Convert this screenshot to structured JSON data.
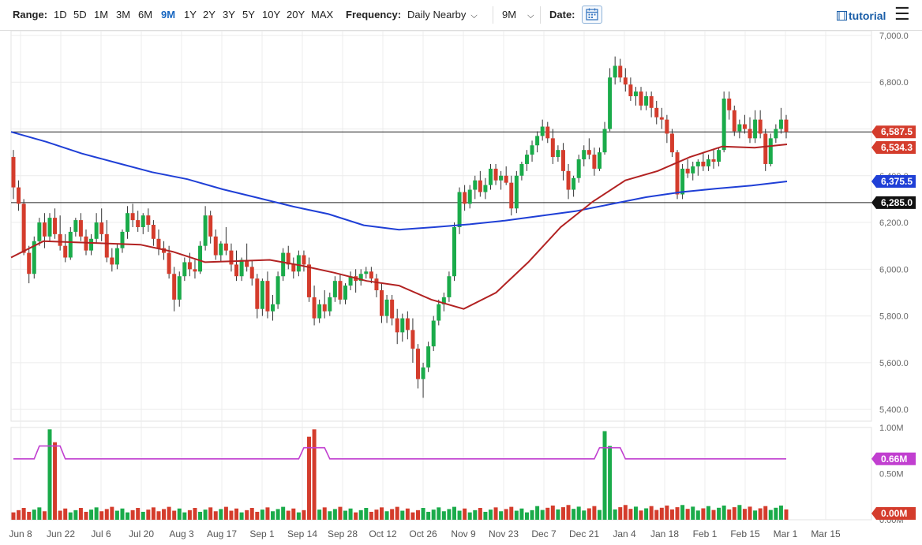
{
  "toolbar": {
    "range_label": "Range:",
    "ranges": [
      "1D",
      "5D",
      "1M",
      "3M",
      "6M",
      "9M",
      "1Y",
      "2Y",
      "3Y",
      "5Y",
      "10Y",
      "20Y",
      "MAX"
    ],
    "active_range": "9M",
    "frequency_label": "Frequency:",
    "frequency_value": "Daily Nearby",
    "period_value": "9M",
    "date_label": "Date:",
    "tutorial_label": "tutorial"
  },
  "colors": {
    "up": "#1aab4a",
    "down": "#d43c2c",
    "ma_short": "#b22222",
    "ma_long": "#1f3fd6",
    "volume_ma": "#c13fd0",
    "accent": "#1565c0"
  },
  "chart_data": [
    {
      "type": "candlestick",
      "x_tick_labels": [
        "Jun 8",
        "Jun 22",
        "Jul 6",
        "Jul 20",
        "Aug 3",
        "Aug 17",
        "Sep 1",
        "Sep 14",
        "Sep 28",
        "Oct 12",
        "Oct 26",
        "Nov 9",
        "Nov 23",
        "Dec 7",
        "Dec 21",
        "Jan 4",
        "Jan 18",
        "Feb 1",
        "Feb 15",
        "Mar 1",
        "Mar 15"
      ],
      "y_tick_labels": [
        "5,400.0",
        "5,600.0",
        "5,800.0",
        "6,000.0",
        "6,200.0",
        "6,400.0",
        "6,600.0",
        "6,800.0",
        "7,000.0"
      ],
      "ylim": [
        5350,
        7020
      ],
      "price_labels": {
        "last": "6,587.5",
        "ma_short": "6,534.3",
        "ma_long": "6,375.5",
        "support": "6,285.0"
      },
      "horizontal_lines": [
        6587.5,
        6285.0
      ],
      "ma_short_anchors": [
        6050,
        6120,
        6115,
        6110,
        6105,
        6075,
        6030,
        6035,
        6040,
        6015,
        5985,
        5950,
        5930,
        5870,
        5830,
        5900,
        6030,
        6180,
        6290,
        6380,
        6420,
        6480,
        6525,
        6520,
        6534.3
      ],
      "ma_long_anchors": [
        6587.5,
        6545,
        6495,
        6455,
        6415,
        6385,
        6342,
        6305,
        6268,
        6236,
        6188,
        6169,
        6180,
        6192,
        6208,
        6228,
        6248,
        6278,
        6308,
        6330,
        6345,
        6358,
        6375.5
      ],
      "candles": [
        [
          6480,
          6510,
          6300,
          6350
        ],
        [
          6350,
          6380,
          6250,
          6280
        ],
        [
          6280,
          6300,
          6060,
          6070
        ],
        [
          6070,
          6100,
          5940,
          5980
        ],
        [
          5980,
          6140,
          5960,
          6120
        ],
        [
          6120,
          6220,
          6100,
          6200
        ],
        [
          6200,
          6240,
          6090,
          6140
        ],
        [
          6140,
          6240,
          6120,
          6220
        ],
        [
          6220,
          6260,
          6130,
          6150
        ],
        [
          6150,
          6230,
          6080,
          6100
        ],
        [
          6100,
          6150,
          6030,
          6050
        ],
        [
          6050,
          6180,
          6040,
          6160
        ],
        [
          6160,
          6220,
          6140,
          6210
        ],
        [
          6210,
          6240,
          6120,
          6140
        ],
        [
          6140,
          6170,
          6060,
          6080
        ],
        [
          6080,
          6150,
          6060,
          6130
        ],
        [
          6130,
          6240,
          6110,
          6200
        ],
        [
          6200,
          6260,
          6120,
          6150
        ],
        [
          6150,
          6210,
          6030,
          6050
        ],
        [
          6050,
          6090,
          5990,
          6020
        ],
        [
          6020,
          6110,
          6000,
          6090
        ],
        [
          6090,
          6170,
          6070,
          6160
        ],
        [
          6160,
          6270,
          6130,
          6240
        ],
        [
          6240,
          6280,
          6180,
          6210
        ],
        [
          6210,
          6250,
          6160,
          6180
        ],
        [
          6180,
          6240,
          6150,
          6230
        ],
        [
          6230,
          6260,
          6160,
          6190
        ],
        [
          6190,
          6210,
          6100,
          6130
        ],
        [
          6130,
          6170,
          6060,
          6090
        ],
        [
          6090,
          6120,
          6040,
          6070
        ],
        [
          6070,
          6100,
          5960,
          5980
        ],
        [
          5980,
          6010,
          5820,
          5870
        ],
        [
          5870,
          5990,
          5840,
          5970
        ],
        [
          5970,
          6050,
          5950,
          6030
        ],
        [
          6030,
          6070,
          5970,
          6000
        ],
        [
          6000,
          6040,
          5960,
          5990
        ],
        [
          5990,
          6120,
          5980,
          6100
        ],
        [
          6100,
          6270,
          6080,
          6230
        ],
        [
          6230,
          6250,
          6110,
          6140
        ],
        [
          6140,
          6170,
          6040,
          6060
        ],
        [
          6060,
          6120,
          6030,
          6110
        ],
        [
          6110,
          6180,
          6060,
          6080
        ],
        [
          6080,
          6110,
          5990,
          6020
        ],
        [
          6020,
          6080,
          5950,
          5970
        ],
        [
          5970,
          6050,
          5950,
          6040
        ],
        [
          6040,
          6110,
          5990,
          6010
        ],
        [
          6010,
          6040,
          5930,
          5960
        ],
        [
          5960,
          5980,
          5790,
          5830
        ],
        [
          5830,
          5960,
          5800,
          5950
        ],
        [
          5950,
          5990,
          5790,
          5820
        ],
        [
          5820,
          5890,
          5780,
          5850
        ],
        [
          5850,
          5990,
          5830,
          5970
        ],
        [
          5970,
          6090,
          5950,
          6070
        ],
        [
          6070,
          6100,
          6000,
          6020
        ],
        [
          6020,
          6050,
          5960,
          5990
        ],
        [
          5990,
          6080,
          5970,
          6060
        ],
        [
          6060,
          6080,
          5990,
          6020
        ],
        [
          6020,
          6050,
          5860,
          5880
        ],
        [
          5880,
          5930,
          5760,
          5790
        ],
        [
          5790,
          5870,
          5770,
          5850
        ],
        [
          5850,
          5910,
          5790,
          5820
        ],
        [
          5820,
          5900,
          5800,
          5880
        ],
        [
          5880,
          5970,
          5860,
          5950
        ],
        [
          5950,
          5980,
          5850,
          5870
        ],
        [
          5870,
          5940,
          5850,
          5930
        ],
        [
          5930,
          5990,
          5910,
          5970
        ],
        [
          5970,
          6000,
          5900,
          5950
        ],
        [
          5950,
          6000,
          5930,
          5980
        ],
        [
          5980,
          6010,
          5960,
          5990
        ],
        [
          5990,
          6010,
          5940,
          5960
        ],
        [
          5960,
          5980,
          5880,
          5910
        ],
        [
          5910,
          5940,
          5770,
          5800
        ],
        [
          5800,
          5890,
          5770,
          5870
        ],
        [
          5870,
          5890,
          5760,
          5790
        ],
        [
          5790,
          5830,
          5680,
          5730
        ],
        [
          5730,
          5810,
          5690,
          5790
        ],
        [
          5790,
          5820,
          5700,
          5740
        ],
        [
          5740,
          5790,
          5600,
          5660
        ],
        [
          5660,
          5680,
          5490,
          5530
        ],
        [
          5530,
          5600,
          5450,
          5580
        ],
        [
          5580,
          5690,
          5560,
          5670
        ],
        [
          5670,
          5800,
          5650,
          5780
        ],
        [
          5780,
          5870,
          5760,
          5850
        ],
        [
          5850,
          5900,
          5820,
          5880
        ],
        [
          5880,
          5990,
          5860,
          5970
        ],
        [
          5970,
          6200,
          5950,
          6180
        ],
        [
          6180,
          6350,
          6150,
          6330
        ],
        [
          6330,
          6360,
          6250,
          6280
        ],
        [
          6280,
          6360,
          6260,
          6340
        ],
        [
          6340,
          6400,
          6300,
          6380
        ],
        [
          6380,
          6420,
          6310,
          6330
        ],
        [
          6330,
          6390,
          6300,
          6360
        ],
        [
          6360,
          6450,
          6340,
          6430
        ],
        [
          6430,
          6450,
          6360,
          6380
        ],
        [
          6380,
          6420,
          6340,
          6400
        ],
        [
          6400,
          6440,
          6360,
          6370
        ],
        [
          6370,
          6400,
          6230,
          6260
        ],
        [
          6260,
          6420,
          6240,
          6400
        ],
        [
          6400,
          6460,
          6380,
          6450
        ],
        [
          6450,
          6510,
          6420,
          6490
        ],
        [
          6490,
          6550,
          6460,
          6530
        ],
        [
          6530,
          6590,
          6500,
          6570
        ],
        [
          6570,
          6640,
          6550,
          6610
        ],
        [
          6610,
          6630,
          6540,
          6560
        ],
        [
          6560,
          6600,
          6450,
          6480
        ],
        [
          6480,
          6530,
          6460,
          6510
        ],
        [
          6510,
          6540,
          6380,
          6420
        ],
        [
          6420,
          6450,
          6300,
          6340
        ],
        [
          6340,
          6400,
          6310,
          6390
        ],
        [
          6390,
          6490,
          6370,
          6470
        ],
        [
          6470,
          6530,
          6440,
          6510
        ],
        [
          6510,
          6560,
          6470,
          6490
        ],
        [
          6490,
          6520,
          6400,
          6430
        ],
        [
          6430,
          6520,
          6420,
          6500
        ],
        [
          6500,
          6630,
          6490,
          6600
        ],
        [
          6600,
          6860,
          6590,
          6820
        ],
        [
          6820,
          6910,
          6790,
          6870
        ],
        [
          6870,
          6900,
          6800,
          6820
        ],
        [
          6820,
          6860,
          6760,
          6790
        ],
        [
          6790,
          6820,
          6720,
          6740
        ],
        [
          6740,
          6780,
          6700,
          6760
        ],
        [
          6760,
          6780,
          6680,
          6700
        ],
        [
          6700,
          6760,
          6680,
          6740
        ],
        [
          6740,
          6760,
          6650,
          6690
        ],
        [
          6690,
          6720,
          6620,
          6650
        ],
        [
          6650,
          6690,
          6600,
          6640
        ],
        [
          6640,
          6660,
          6540,
          6580
        ],
        [
          6580,
          6600,
          6480,
          6500
        ],
        [
          6500,
          6510,
          6300,
          6320
        ],
        [
          6320,
          6450,
          6300,
          6430
        ],
        [
          6430,
          6470,
          6390,
          6410
        ],
        [
          6410,
          6460,
          6380,
          6440
        ],
        [
          6440,
          6470,
          6400,
          6460
        ],
        [
          6460,
          6500,
          6420,
          6440
        ],
        [
          6440,
          6490,
          6420,
          6470
        ],
        [
          6470,
          6510,
          6430,
          6460
        ],
        [
          6460,
          6520,
          6440,
          6510
        ],
        [
          6510,
          6760,
          6500,
          6730
        ],
        [
          6730,
          6760,
          6640,
          6680
        ],
        [
          6680,
          6700,
          6570,
          6590
        ],
        [
          6590,
          6640,
          6560,
          6620
        ],
        [
          6620,
          6660,
          6580,
          6600
        ],
        [
          6600,
          6650,
          6540,
          6560
        ],
        [
          6560,
          6680,
          6540,
          6640
        ],
        [
          6640,
          6680,
          6560,
          6580
        ],
        [
          6580,
          6600,
          6420,
          6450
        ],
        [
          6450,
          6580,
          6440,
          6560
        ],
        [
          6560,
          6620,
          6540,
          6600
        ],
        [
          6600,
          6690,
          6580,
          6640
        ],
        [
          6640,
          6660,
          6560,
          6587.5
        ]
      ]
    },
    {
      "type": "bar",
      "y_tick_labels": [
        "0.00M",
        "0.50M",
        "1.00M"
      ],
      "ylim": [
        0,
        1.0
      ],
      "price_labels": {
        "volume_ma": "0.66M",
        "volume_last": "0.00M"
      },
      "volume_ma_value": 0.66,
      "spikes": {
        "7": 0.98,
        "8": 0.84,
        "57": 0.9,
        "58": 0.98,
        "114": 0.96,
        "115": 0.8
      }
    }
  ]
}
